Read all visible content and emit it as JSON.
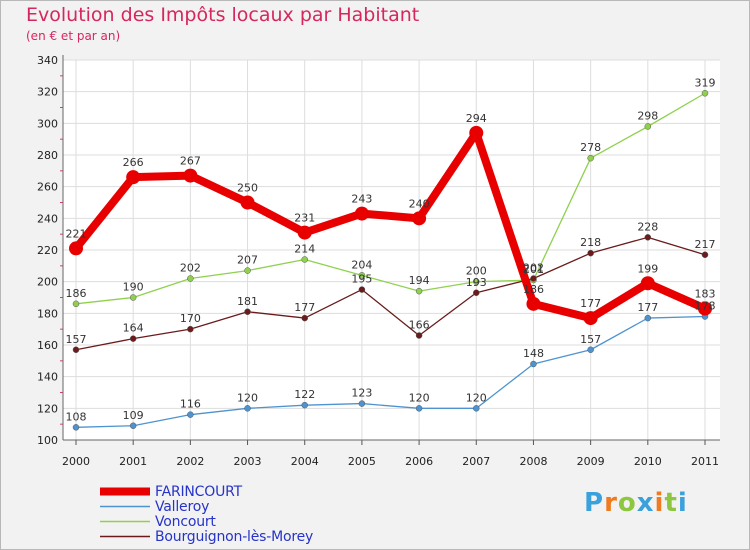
{
  "chart_data": {
    "type": "line",
    "title": "Evolution des Impôts locaux par Habitant",
    "subtitle": "(en € et par an)",
    "xlabel": "",
    "ylabel": "",
    "ylim": [
      100,
      340
    ],
    "yticks": [
      "100",
      "120",
      "140",
      "160",
      "180",
      "200",
      "220",
      "240",
      "260",
      "280",
      "300",
      "320",
      "340"
    ],
    "categories": [
      "2000",
      "2001",
      "2002",
      "2003",
      "2004",
      "2005",
      "2006",
      "2007",
      "2008",
      "2009",
      "2010",
      "2011"
    ],
    "series": [
      {
        "name": "FARINCOURT",
        "color": "#e80000",
        "values": [
          221,
          266,
          267,
          250,
          231,
          243,
          240,
          294,
          186,
          177,
          199,
          183
        ]
      },
      {
        "name": "Valleroy",
        "color": "#4e93cf",
        "values": [
          108,
          109,
          116,
          120,
          122,
          123,
          120,
          120,
          148,
          157,
          177,
          178
        ]
      },
      {
        "name": "Voncourt",
        "color": "#8fd14f",
        "values": [
          186,
          190,
          202,
          207,
          214,
          204,
          194,
          200,
          201,
          278,
          298,
          319
        ]
      },
      {
        "name": "Bourguignon-lès-Morey",
        "color": "#6b1b1b",
        "values": [
          157,
          164,
          170,
          181,
          177,
          195,
          166,
          193,
          202,
          218,
          228,
          217
        ]
      }
    ],
    "value_labels": [
      [
        "221",
        "266",
        "267",
        "250",
        "231",
        "243",
        "240",
        "294",
        "186",
        "177",
        "199",
        "183"
      ],
      [
        "108",
        "109",
        "116",
        "120",
        "122",
        "123",
        "120",
        "120",
        "148",
        "157",
        "177",
        "178"
      ],
      [
        "186",
        "190",
        "202",
        "207",
        "214",
        "204",
        "194",
        "200",
        "201",
        "278",
        "298",
        "319"
      ],
      [
        "157",
        "164",
        "170",
        "181",
        "177",
        "195",
        "166",
        "193",
        "202",
        "218",
        "228",
        "217"
      ]
    ],
    "legend_position": "bottom-left",
    "grid": true
  },
  "logo": {
    "text": "Proxiti",
    "letters": [
      "P",
      "r",
      "o",
      "x",
      "i",
      "t",
      "i"
    ],
    "colors": [
      "#3aa1dc",
      "#ee7b1f",
      "#8dc63f",
      "#3aa1dc",
      "#ee7b1f",
      "#8dc63f",
      "#3aa1dc"
    ]
  }
}
